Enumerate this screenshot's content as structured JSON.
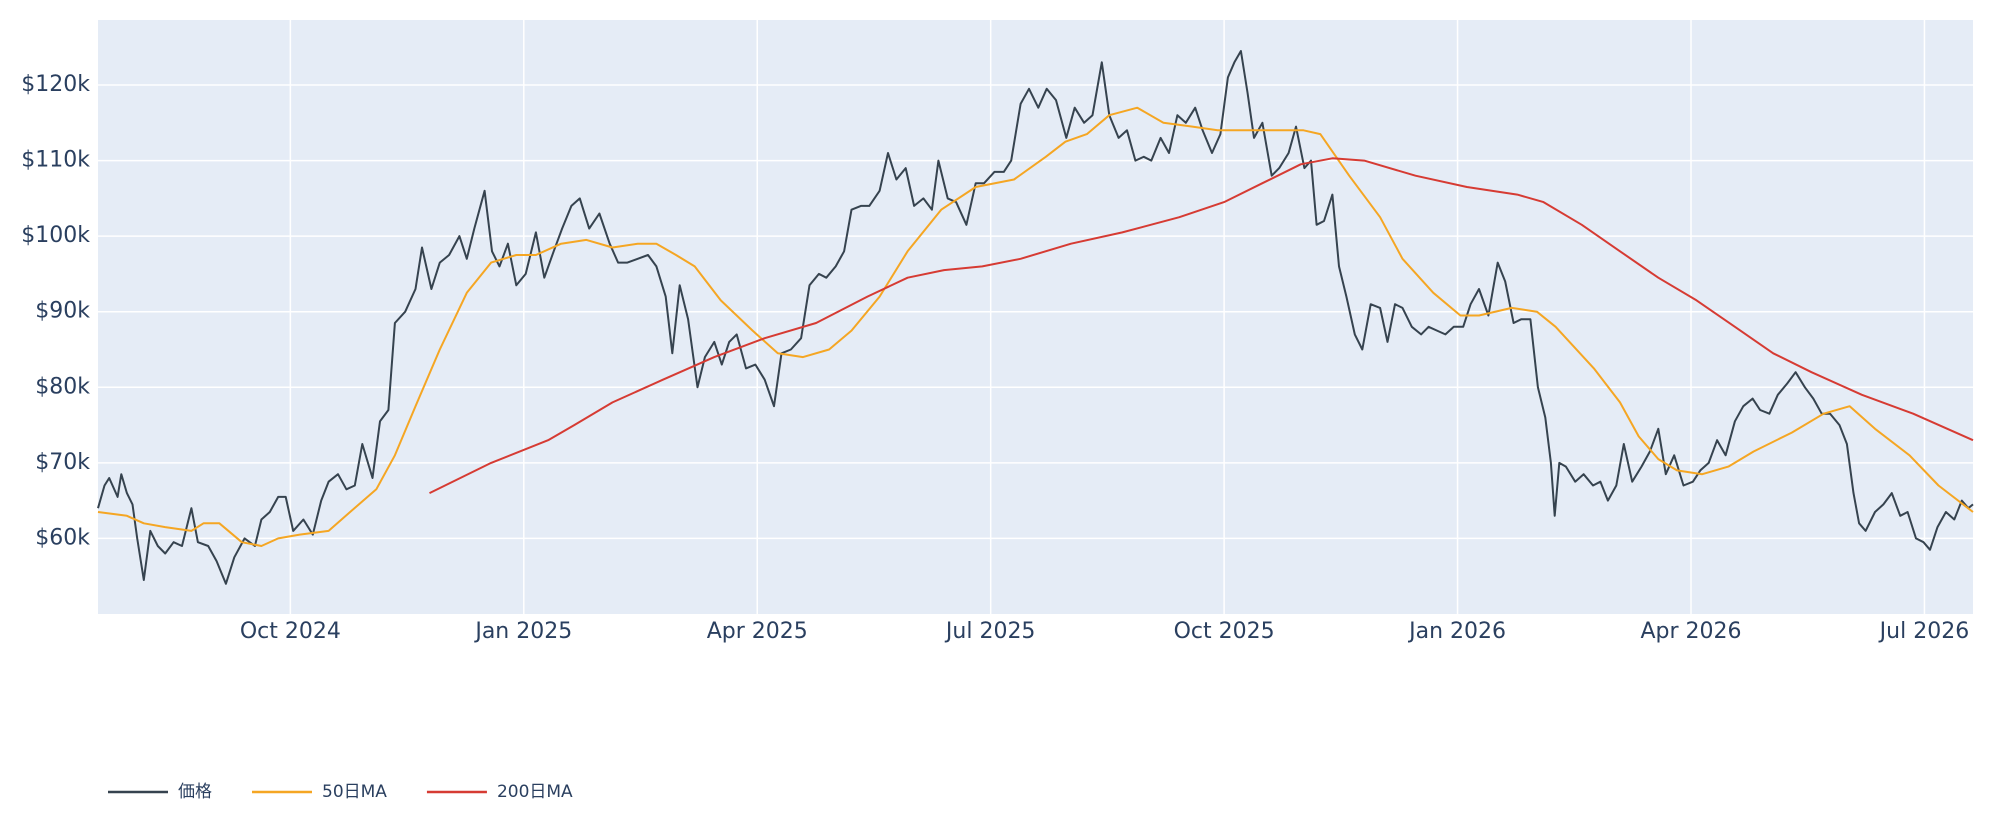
{
  "chart_data": {
    "type": "line",
    "xlim": [
      2024.544,
      2026.552
    ],
    "xticks": [
      {
        "value": 2024.75,
        "label": "Oct 2024"
      },
      {
        "value": 2025.0,
        "label": "Jan 2025"
      },
      {
        "value": 2025.25,
        "label": "Apr 2025"
      },
      {
        "value": 2025.5,
        "label": "Jul 2025"
      },
      {
        "value": 2025.75,
        "label": "Oct 2025"
      },
      {
        "value": 2026.0,
        "label": "Jan 2026"
      },
      {
        "value": 2026.25,
        "label": "Apr 2026"
      },
      {
        "value": 2026.5,
        "label": "Jul 2026"
      }
    ],
    "ylim": [
      50000,
      128600
    ],
    "yticks": [
      {
        "value": 60000,
        "label": "$60k"
      },
      {
        "value": 70000,
        "label": "$70k"
      },
      {
        "value": 80000,
        "label": "$80k"
      },
      {
        "value": 90000,
        "label": "$90k"
      },
      {
        "value": 100000,
        "label": "$100k"
      },
      {
        "value": 110000,
        "label": "$110k"
      },
      {
        "value": 120000,
        "label": "$120k"
      }
    ],
    "grid": true,
    "legend": "bottom-left",
    "series": [
      {
        "name": "価格",
        "color": "#36434f",
        "x": [
          2024.544,
          2024.551,
          2024.556,
          2024.565,
          2024.569,
          2024.575,
          2024.581,
          2024.586,
          2024.593,
          2024.6,
          2024.608,
          2024.616,
          2024.625,
          2024.634,
          2024.644,
          2024.651,
          2024.662,
          2024.671,
          2024.681,
          2024.69,
          2024.701,
          2024.712,
          2024.719,
          2024.728,
          2024.737,
          2024.745,
          2024.753,
          2024.764,
          2024.774,
          2024.783,
          2024.791,
          2024.801,
          2024.81,
          2024.819,
          2024.827,
          2024.838,
          2024.846,
          2024.855,
          2024.862,
          2024.873,
          2024.884,
          2024.891,
          2024.901,
          2024.91,
          2024.92,
          2024.931,
          2024.939,
          2024.947,
          2024.958,
          2024.966,
          2024.974,
          2024.983,
          2024.992,
          2025.002,
          2025.013,
          2025.022,
          2025.032,
          2025.041,
          2025.051,
          2025.06,
          2025.07,
          2025.081,
          2025.092,
          2025.101,
          2025.111,
          2025.122,
          2025.133,
          2025.142,
          2025.152,
          2025.159,
          2025.167,
          2025.176,
          2025.186,
          2025.194,
          2025.204,
          2025.212,
          2025.22,
          2025.228,
          2025.238,
          2025.248,
          2025.258,
          2025.268,
          2025.276,
          2025.286,
          2025.297,
          2025.306,
          2025.316,
          2025.324,
          2025.334,
          2025.343,
          2025.351,
          2025.361,
          2025.37,
          2025.381,
          2025.39,
          2025.399,
          2025.409,
          2025.418,
          2025.428,
          2025.437,
          2025.444,
          2025.454,
          2025.463,
          2025.474,
          2025.484,
          2025.493,
          2025.504,
          2025.514,
          2025.522,
          2025.532,
          2025.541,
          2025.551,
          2025.56,
          2025.57,
          2025.581,
          2025.59,
          2025.6,
          2025.609,
          2025.619,
          2025.627,
          2025.637,
          2025.646,
          2025.655,
          2025.664,
          2025.672,
          2025.682,
          2025.691,
          2025.7,
          2025.709,
          2025.719,
          2025.727,
          2025.737,
          2025.746,
          2025.754,
          2025.761,
          2025.768,
          2025.775,
          2025.782,
          2025.791,
          2025.801,
          2025.809,
          2025.819,
          2025.827,
          2025.836,
          2025.843,
          2025.849,
          2025.857,
          2025.866,
          2025.873,
          2025.881,
          2025.89,
          2025.898,
          2025.907,
          2025.917,
          2025.925,
          2025.933,
          2025.941,
          2025.951,
          2025.961,
          2025.969,
          2025.978,
          2025.987,
          2025.996,
          2026.006,
          2026.014,
          2026.023,
          2026.033,
          2026.043,
          2026.051,
          2026.06,
          2026.068,
          2026.078,
          2026.086,
          2026.094,
          2026.1,
          2026.104,
          2026.109,
          2026.116,
          2026.126,
          2026.135,
          2026.145,
          2026.153,
          2026.161,
          2026.17,
          2026.178,
          2026.187,
          2026.197,
          2026.206,
          2026.215,
          2026.223,
          2026.232,
          2026.242,
          2026.252,
          2026.26,
          2026.269,
          2026.278,
          2026.287,
          2026.297,
          2026.306,
          2026.316,
          2026.324,
          2026.334,
          2026.343,
          2026.353,
          2026.362,
          2026.372,
          2026.381,
          2026.39,
          2026.399,
          2026.409,
          2026.417,
          2026.424,
          2026.43,
          2026.437,
          2026.447,
          2026.456,
          2026.465,
          2026.474,
          2026.482,
          2026.491,
          2026.499,
          2026.506,
          2026.514,
          2026.523,
          2026.532,
          2026.54,
          2026.547,
          2026.552
        ],
        "values": [
          64000,
          67000,
          68000,
          65500,
          68500,
          66000,
          64500,
          60000,
          54500,
          61000,
          59000,
          58000,
          59500,
          59000,
          64000,
          59500,
          59000,
          57000,
          54000,
          57500,
          60000,
          59000,
          62500,
          63500,
          65500,
          65500,
          61000,
          62500,
          60500,
          65000,
          67500,
          68500,
          66500,
          67000,
          72500,
          68000,
          75500,
          77000,
          88500,
          90000,
          93000,
          98500,
          93000,
          96500,
          97500,
          100000,
          97000,
          101000,
          106000,
          98000,
          96000,
          99000,
          93500,
          95000,
          100500,
          94500,
          98000,
          101000,
          104000,
          105000,
          101000,
          103000,
          99000,
          96500,
          96500,
          97000,
          97500,
          96000,
          92000,
          84500,
          93500,
          89000,
          80000,
          84000,
          86000,
          83000,
          86000,
          87000,
          82500,
          83000,
          81000,
          77500,
          84500,
          85000,
          86500,
          93500,
          95000,
          94500,
          96000,
          98000,
          103500,
          104000,
          104000,
          106000,
          111000,
          107500,
          109000,
          104000,
          105000,
          103500,
          110000,
          105000,
          104500,
          101500,
          107000,
          107000,
          108500,
          108500,
          110000,
          117500,
          119500,
          117000,
          119500,
          118000,
          113000,
          117000,
          115000,
          116000,
          123000,
          116000,
          113000,
          114000,
          110000,
          110500,
          110000,
          113000,
          111000,
          116000,
          115000,
          117000,
          114000,
          111000,
          113500,
          121000,
          123000,
          124500,
          119000,
          113000,
          115000,
          108000,
          109000,
          111000,
          114500,
          109000,
          110000,
          101500,
          102000,
          105500,
          96000,
          92000,
          87000,
          85000,
          91000,
          90500,
          86000,
          91000,
          90500,
          88000,
          87000,
          88000,
          87500,
          87000,
          88000,
          88000,
          91000,
          93000,
          89500,
          96500,
          94000,
          88500,
          89000,
          89000,
          80000,
          76000,
          70000,
          63000,
          70000,
          69500,
          67500,
          68500,
          67000,
          67500,
          65000,
          67000,
          72500,
          67500,
          69500,
          71500,
          74500,
          68500,
          71000,
          67000,
          67500,
          69000,
          70000,
          73000,
          71000,
          75500,
          77500,
          78500,
          77000,
          76500,
          79000,
          80500,
          82000,
          80000,
          78500,
          76500,
          76500,
          75000,
          72500,
          66000,
          62000,
          61000,
          63500,
          64500,
          66000,
          63000,
          63500,
          60000,
          59500,
          58500,
          61500,
          63500,
          62500,
          65000,
          64000,
          64500
        ]
      },
      {
        "name": "50日MA",
        "color": "#f5a623",
        "x": [
          2024.544,
          2024.575,
          2024.593,
          2024.616,
          2024.644,
          2024.657,
          2024.674,
          2024.698,
          2024.719,
          2024.737,
          2024.76,
          2024.791,
          2024.814,
          2024.842,
          2024.862,
          2024.884,
          2024.91,
          2024.939,
          2024.965,
          2024.992,
          2025.013,
          2025.04,
          2025.067,
          2025.095,
          2025.122,
          2025.142,
          2025.163,
          2025.183,
          2025.211,
          2025.245,
          2025.272,
          2025.299,
          2025.327,
          2025.351,
          2025.381,
          2025.411,
          2025.447,
          2025.484,
          2025.525,
          2025.559,
          2025.58,
          2025.603,
          2025.627,
          2025.657,
          2025.685,
          2025.716,
          2025.743,
          2025.771,
          2025.805,
          2025.835,
          2025.853,
          2025.884,
          2025.917,
          2025.941,
          2025.974,
          2026.003,
          2026.023,
          2026.058,
          2026.085,
          2026.105,
          2026.146,
          2026.174,
          2026.194,
          2026.215,
          2026.235,
          2026.262,
          2026.29,
          2026.317,
          2026.358,
          2026.392,
          2026.42,
          2026.447,
          2026.484,
          2026.515,
          2026.552
        ],
        "values": [
          63500,
          63000,
          62000,
          61500,
          61000,
          62000,
          62000,
          59500,
          59000,
          60000,
          60500,
          61000,
          63500,
          66500,
          71000,
          77500,
          85000,
          92500,
          96500,
          97500,
          97500,
          99000,
          99500,
          98500,
          99000,
          99000,
          97500,
          96000,
          91500,
          87500,
          84500,
          84000,
          85000,
          87500,
          92000,
          98000,
          103500,
          106500,
          107500,
          110500,
          112500,
          113500,
          116000,
          117000,
          115000,
          114500,
          114000,
          114000,
          114000,
          114000,
          113500,
          108000,
          102500,
          97000,
          92500,
          89500,
          89500,
          90500,
          90000,
          88000,
          82500,
          78000,
          73500,
          70500,
          69000,
          68500,
          69500,
          71500,
          74000,
          76500,
          77500,
          74500,
          71000,
          67000,
          63500
        ]
      },
      {
        "name": "200日MA",
        "color": "#d63b33",
        "x": [
          2024.899,
          2024.965,
          2025.026,
          2025.054,
          2025.095,
          2025.149,
          2025.204,
          2025.258,
          2025.313,
          2025.368,
          2025.411,
          2025.45,
          2025.491,
          2025.532,
          2025.586,
          2025.641,
          2025.702,
          2025.75,
          2025.791,
          2025.832,
          2025.866,
          2025.9,
          2025.955,
          2026.01,
          2026.064,
          2026.092,
          2026.133,
          2026.174,
          2026.215,
          2026.256,
          2026.297,
          2026.338,
          2026.379,
          2026.433,
          2026.488,
          2026.552
        ],
        "values": [
          66000,
          70000,
          73000,
          75000,
          78000,
          81000,
          84000,
          86500,
          88500,
          92000,
          94500,
          95500,
          96000,
          97000,
          99000,
          100500,
          102500,
          104500,
          107000,
          109500,
          110300,
          110000,
          108000,
          106500,
          105500,
          104500,
          101500,
          98000,
          94500,
          91500,
          88000,
          84500,
          82000,
          79000,
          76500,
          73000
        ]
      }
    ]
  }
}
